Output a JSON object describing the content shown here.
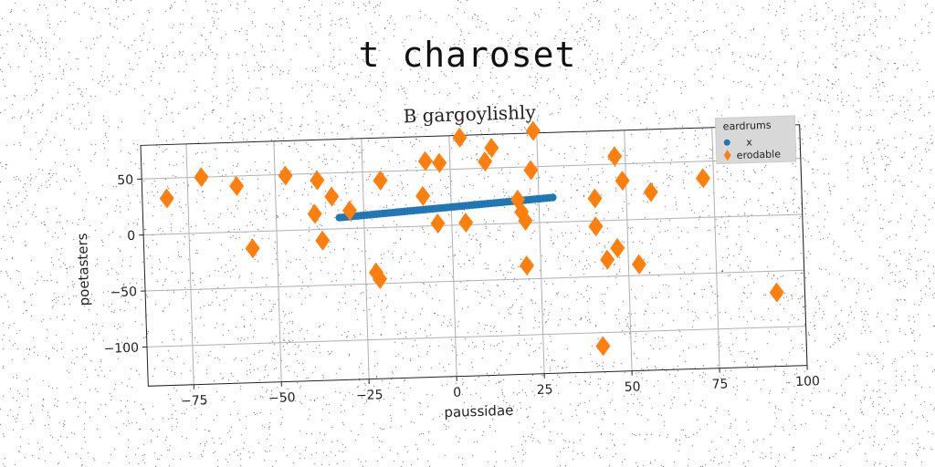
{
  "figure": {
    "suptitle": "t charoset"
  },
  "chart_data": {
    "type": "scatter",
    "title": "B gargoylishly",
    "xlabel": "paussidae",
    "ylabel": "poetasters",
    "xlim": [
      -88,
      100
    ],
    "ylim": [
      -135,
      80
    ],
    "xticks": [
      -75,
      -50,
      -25,
      0,
      25,
      50,
      75,
      100
    ],
    "yticks": [
      50,
      0,
      -50,
      -100
    ],
    "xtick_labels": [
      "−75",
      "−50",
      "−25",
      "0",
      "25",
      "50",
      "75",
      "100"
    ],
    "ytick_labels": [
      "50",
      "0",
      "−50",
      "−100"
    ],
    "grid": true,
    "legend": {
      "title": "eardrums",
      "placement": "top-right"
    },
    "series": [
      {
        "name": "x",
        "marker": "circle",
        "color": "#1f77b4",
        "line_from": [
          -32,
          10
        ],
        "line_to": [
          29,
          22
        ],
        "n_points": 70
      },
      {
        "name": "erodable",
        "marker": "diamond",
        "color": "#ff7f0e",
        "points": [
          [
            -81,
            32
          ],
          [
            -71,
            50
          ],
          [
            -61,
            41
          ],
          [
            -57,
            -15
          ],
          [
            -47,
            49
          ],
          [
            -39,
            14
          ],
          [
            -38,
            44
          ],
          [
            -37,
            -10
          ],
          [
            -34,
            29
          ],
          [
            -29,
            16
          ],
          [
            -22,
            -40
          ],
          [
            -21,
            -46
          ],
          [
            -20,
            42
          ],
          [
            -8,
            27
          ],
          [
            -7,
            58
          ],
          [
            -4,
            2
          ],
          [
            -3,
            56
          ],
          [
            3,
            78
          ],
          [
            4,
            2
          ],
          [
            10,
            56
          ],
          [
            12,
            68
          ],
          [
            19,
            21
          ],
          [
            20,
            10
          ],
          [
            21,
            2
          ],
          [
            21,
            -38
          ],
          [
            23,
            47
          ],
          [
            24,
            82
          ],
          [
            41,
            20
          ],
          [
            41,
            -5
          ],
          [
            42,
            -112
          ],
          [
            44,
            -35
          ],
          [
            47,
            57
          ],
          [
            47,
            -25
          ],
          [
            49,
            35
          ],
          [
            53,
            -40
          ],
          [
            57,
            24
          ],
          [
            72,
            35
          ],
          [
            92,
            -69
          ]
        ]
      }
    ]
  },
  "colors": {
    "blue": "#1f77b4",
    "orange": "#ff7f0e",
    "grid": "#b0b0b0",
    "legend_bg": "#d8d8d8"
  }
}
